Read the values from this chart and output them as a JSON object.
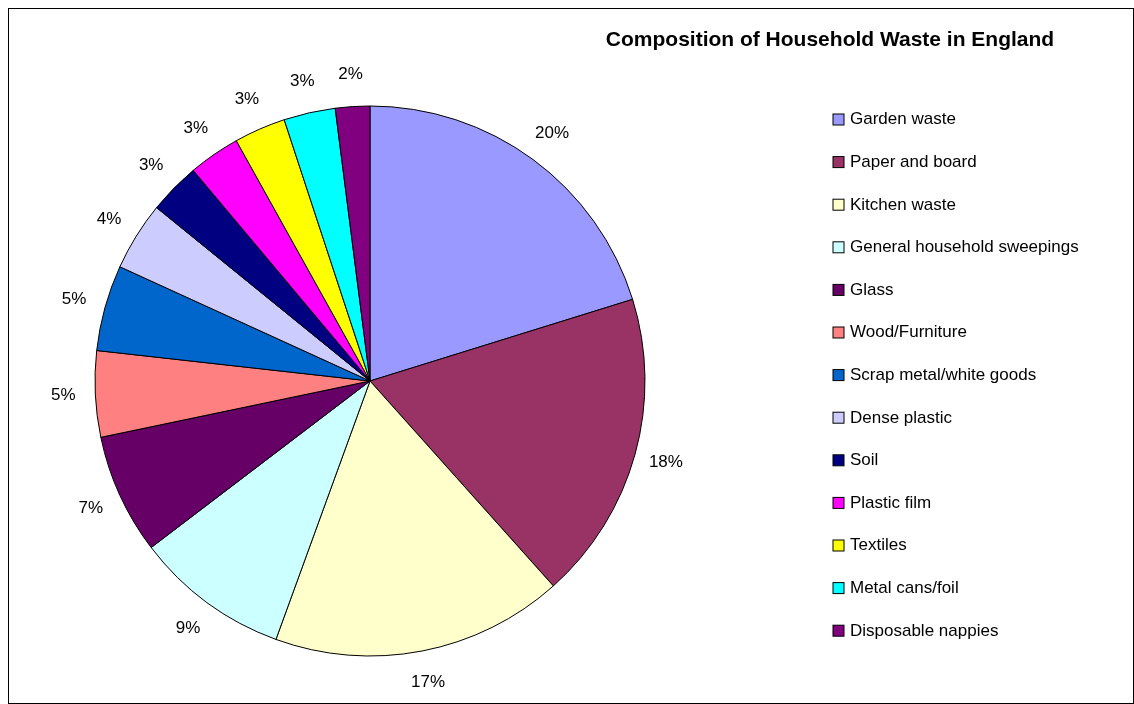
{
  "chart_data": {
    "type": "pie",
    "title": "Composition of Household Waste in England",
    "categories": [
      "Garden waste",
      "Paper and board",
      "Kitchen waste",
      "General household sweepings",
      "Glass",
      "Wood/Furniture",
      "Scrap metal/white goods",
      "Dense plastic",
      "Soil",
      "Plastic film",
      "Textiles",
      "Metal cans/foil",
      "Disposable nappies"
    ],
    "values": [
      20,
      18,
      17,
      9,
      7,
      5,
      5,
      4,
      3,
      3,
      3,
      3,
      2
    ],
    "colors": [
      "#9999ff",
      "#993366",
      "#ffffcc",
      "#ccffff",
      "#660066",
      "#ff8080",
      "#0066cc",
      "#ccccff",
      "#000080",
      "#ff00ff",
      "#ffff00",
      "#00ffff",
      "#800080"
    ],
    "value_labels": [
      "20%",
      "18%",
      "17%",
      "9%",
      "7%",
      "5%",
      "5%",
      "4%",
      "3%",
      "3%",
      "3%",
      "3%",
      "2%"
    ],
    "legend": "right"
  }
}
